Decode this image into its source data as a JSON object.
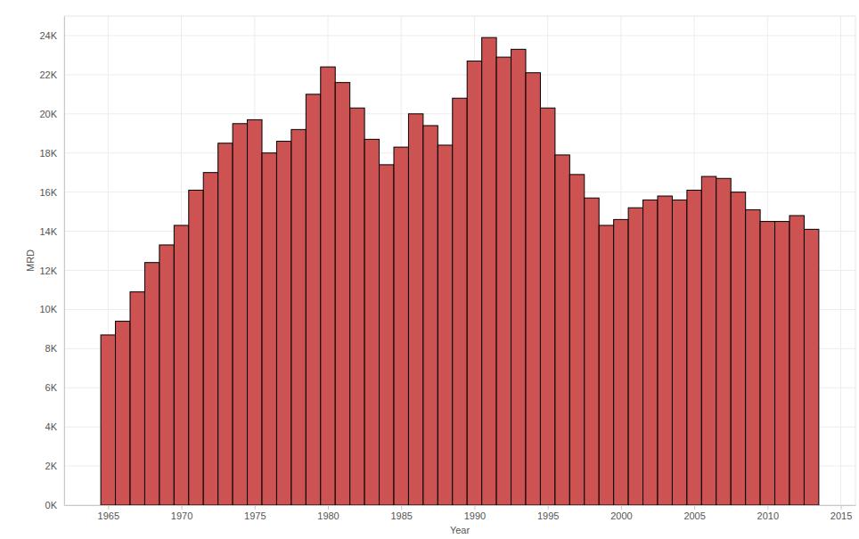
{
  "chart_data": {
    "type": "histogram",
    "x_label": "Year",
    "y_label": "MRD",
    "bins": [
      1964.5,
      1965.5,
      1966.5,
      1967.5,
      1968.5,
      1969.5,
      1970.5,
      1971.5,
      1972.5,
      1973.5,
      1974.5,
      1975.5,
      1976.5,
      1977.5,
      1978.5,
      1979.5,
      1980.5,
      1981.5,
      1982.5,
      1983.5,
      1984.5,
      1985.5,
      1986.5,
      1987.5,
      1988.5,
      1989.5,
      1990.5,
      1991.5,
      1992.5,
      1993.5,
      1994.5,
      1995.5,
      1996.5,
      1997.5,
      1998.5,
      1999.5,
      2000.5,
      2001.5,
      2002.5,
      2003.5,
      2004.5,
      2005.5,
      2006.5,
      2007.5,
      2008.5,
      2009.5,
      2010.5,
      2011.5,
      2012.5,
      2013.5
    ],
    "values": [
      8700,
      9400,
      10900,
      12400,
      13300,
      14300,
      16100,
      17000,
      18500,
      19500,
      19700,
      18000,
      18600,
      19200,
      21000,
      22400,
      21600,
      20300,
      18700,
      17400,
      18300,
      20000,
      19400,
      18400,
      20800,
      22700,
      23900,
      22900,
      23300,
      22100,
      20300,
      17900,
      16900,
      15700,
      14300,
      14600,
      15200,
      15600,
      15800,
      15600,
      16100,
      16800,
      16700,
      16000,
      15100,
      14500,
      14500,
      14800,
      14100
    ],
    "color": "#cd5352",
    "xlim": [
      1962,
      2016
    ],
    "xticks": [
      1965,
      1970,
      1975,
      1980,
      1985,
      1990,
      1995,
      2000,
      2005,
      2010,
      2015
    ],
    "ylim": [
      0,
      25000
    ],
    "yticks": [
      {
        "value": 0,
        "label": "0K"
      },
      {
        "value": 2000,
        "label": "2K"
      },
      {
        "value": 4000,
        "label": "4K"
      },
      {
        "value": 6000,
        "label": "6K"
      },
      {
        "value": 8000,
        "label": "8K"
      },
      {
        "value": 10000,
        "label": "10K"
      },
      {
        "value": 12000,
        "label": "12K"
      },
      {
        "value": 14000,
        "label": "14K"
      },
      {
        "value": 16000,
        "label": "16K"
      },
      {
        "value": 18000,
        "label": "18K"
      },
      {
        "value": 20000,
        "label": "20K"
      },
      {
        "value": 22000,
        "label": "22K"
      },
      {
        "value": 24000,
        "label": "24K"
      }
    ],
    "grid": true
  }
}
